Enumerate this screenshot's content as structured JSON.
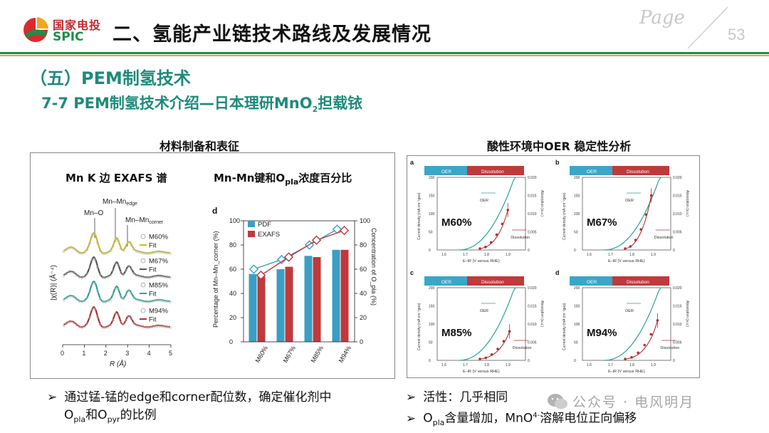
{
  "header": {
    "logo_cn": "国家电投",
    "logo_en": "SPIC",
    "title": "二、氢能产业链技术路线及发展情况",
    "page_word": "Page",
    "page_number": "53"
  },
  "section": {
    "title": "（五）PEM制氢技术",
    "subtitle_pre": "7-7 PEM制氢技术介绍—日本理研MnO",
    "subtitle_sub": "2",
    "subtitle_post": "担载铱"
  },
  "left_panel": {
    "title": "材料制备和表征",
    "exafs_title": "Mn K 边  EXAFS 谱",
    "bar_title_pre": "Mn-Mn键和O",
    "bar_title_sub": "pla",
    "bar_title_post": "浓度百分比",
    "exafs": {
      "peak_labels": [
        "Mn–O",
        "Mn–Mn",
        "edge",
        "Mn–Mn",
        "corner"
      ],
      "legend": [
        {
          "sample": "M60%",
          "fit": "Fit",
          "color": "#c8b832"
        },
        {
          "sample": "M67%",
          "fit": "Fit",
          "color": "#555555"
        },
        {
          "sample": "M85%",
          "fit": "Fit",
          "color": "#2aa198"
        },
        {
          "sample": "M94%",
          "fit": "Fit",
          "color": "#b03030"
        }
      ],
      "xlabel": "R (Å)",
      "ylabel": "|χ(R)| (Å⁻⁴)",
      "xticks": [
        "0",
        "1",
        "2",
        "3",
        "4",
        "5"
      ]
    }
  },
  "chart_data": {
    "type": "bar",
    "panel_label": "d",
    "categories": [
      "M60%",
      "M67%",
      "M85%",
      "M94%"
    ],
    "series": [
      {
        "name": "PDF",
        "values": [
          56,
          60,
          71,
          76
        ],
        "color": "#3a9fc4"
      },
      {
        "name": "EXAFS",
        "values": [
          54,
          62,
          70,
          76
        ],
        "color": "#c0393b"
      }
    ],
    "line_series": [
      {
        "name": "PDF",
        "values": [
          60,
          68,
          80,
          93
        ],
        "color": "#3a9fc4"
      },
      {
        "name": "EXAFS",
        "values": [
          55,
          70,
          84,
          92
        ],
        "color": "#c0393b"
      }
    ],
    "ylabel": "Percentage of Mn–Mn_corner (%)",
    "y2label": "Concentration of O_pla (%)",
    "ylim": [
      0,
      100
    ],
    "yticks": [
      "0",
      "20",
      "40",
      "60",
      "80",
      "100"
    ]
  },
  "right_panel": {
    "title": "酸性环境中OER 稳定性分析",
    "oer_label": "OER",
    "dissolution_label": "Dissolution",
    "xlabel": "E–iR (V versus RHE)",
    "ylabel": "Current density (mA cm⁻²geo)",
    "y2label": "Absorption (a.u.)",
    "xticks": [
      "1.6",
      "1.7",
      "1.8",
      "1.9"
    ],
    "yticks": [
      "0",
      "50",
      "100",
      "150",
      "200"
    ],
    "y2ticks": [
      "0",
      "0.005",
      "0.010",
      "0.015",
      "0.020"
    ],
    "subplots": [
      {
        "letter": "a",
        "sample": "M60%"
      },
      {
        "letter": "b",
        "sample": "M67%"
      },
      {
        "letter": "c",
        "sample": "M85%"
      },
      {
        "letter": "d",
        "sample": "M94%"
      }
    ]
  },
  "bullets_left": {
    "line1": "通过锰-锰的edge和corner配位数，确定催化剂中",
    "l2_o": "O",
    "l2_pla": "pla",
    "l2_and": "和O",
    "l2_pyr": "pyr",
    "l2_end": "的比例"
  },
  "bullets_right": {
    "line1": "活性：几乎相同",
    "l2_o": "O",
    "l2_pla": "pla",
    "l2_mid": "含量增加，MnO",
    "l2_sup": "4-",
    "l2_end": "溶解电位正向偏移"
  },
  "watermark": "公众号 · 电风明月"
}
